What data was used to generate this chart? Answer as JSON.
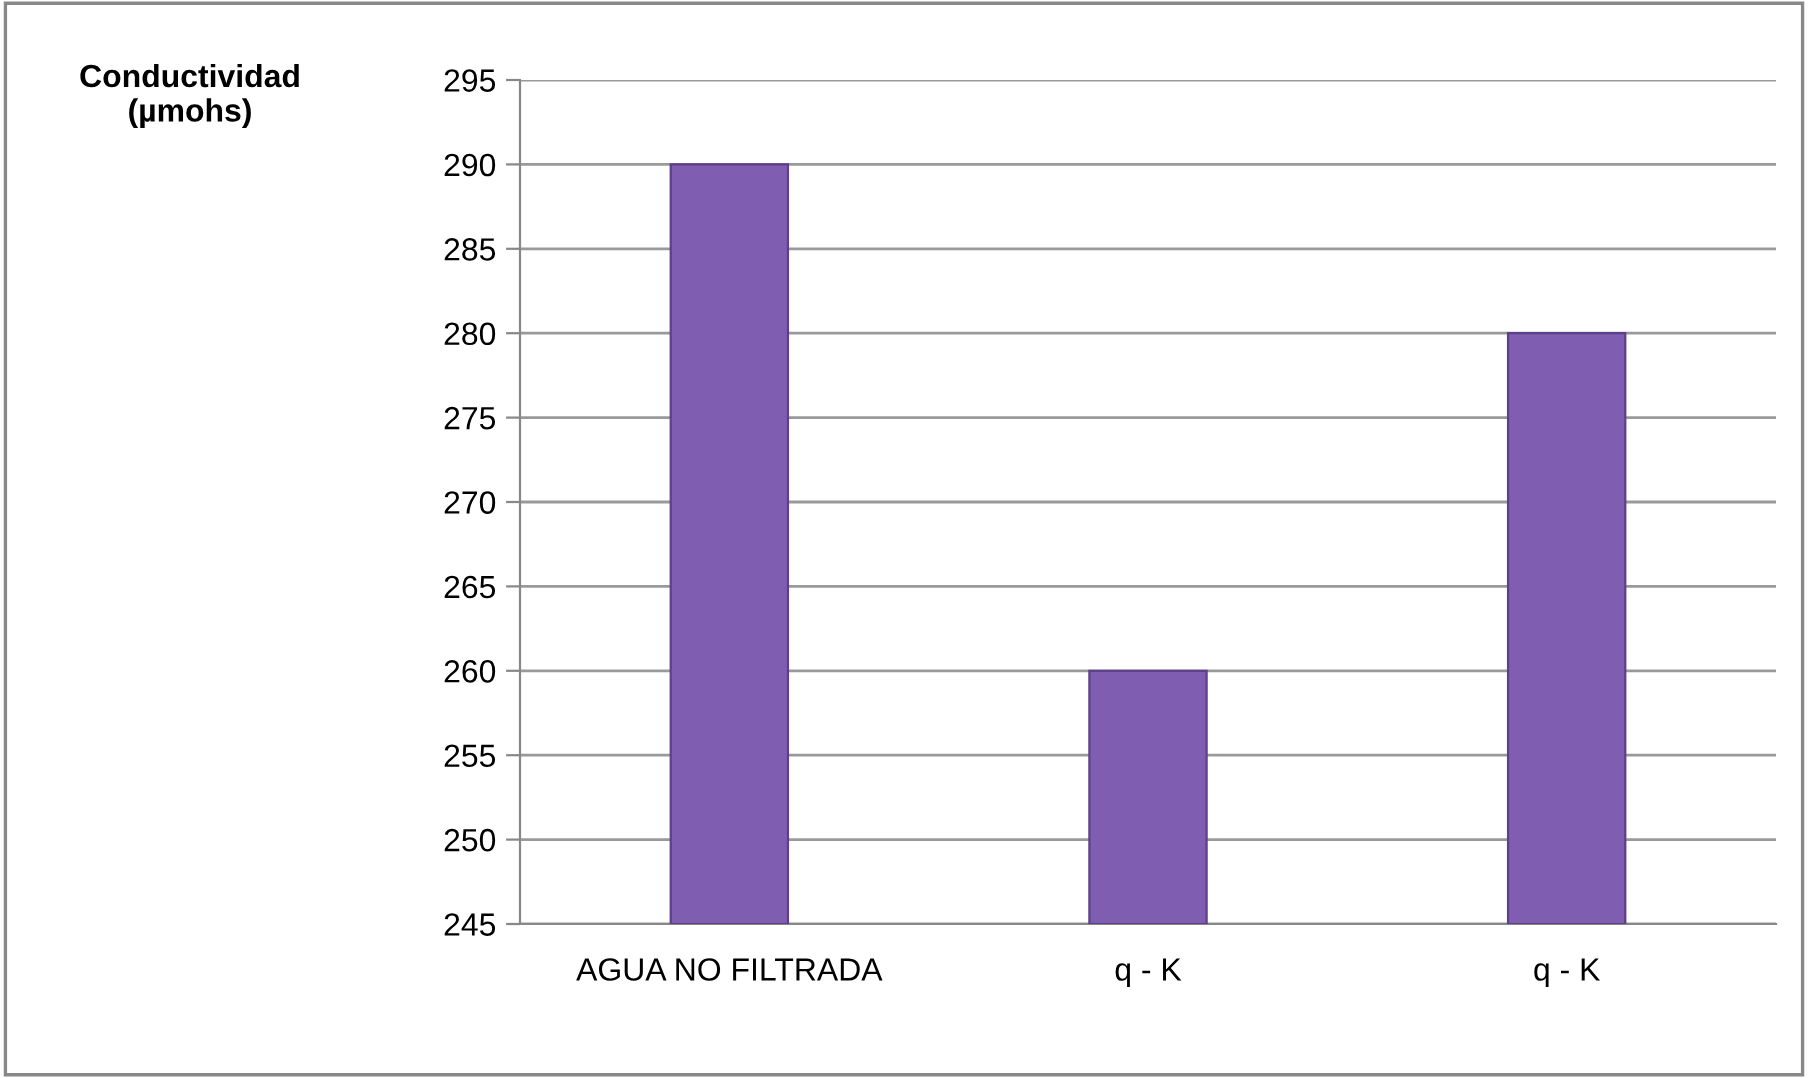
{
  "chart_data": {
    "type": "bar",
    "ylabel": "Conductividad\n(µmohs)",
    "categories": [
      "AGUA NO FILTRADA",
      "q - K",
      "q - K"
    ],
    "values": [
      290,
      260,
      280
    ],
    "color": "#7f5db0",
    "ylim": [
      245,
      295
    ],
    "yticks": [
      245,
      250,
      255,
      260,
      265,
      270,
      275,
      280,
      285,
      290,
      295
    ],
    "grid": "y"
  }
}
